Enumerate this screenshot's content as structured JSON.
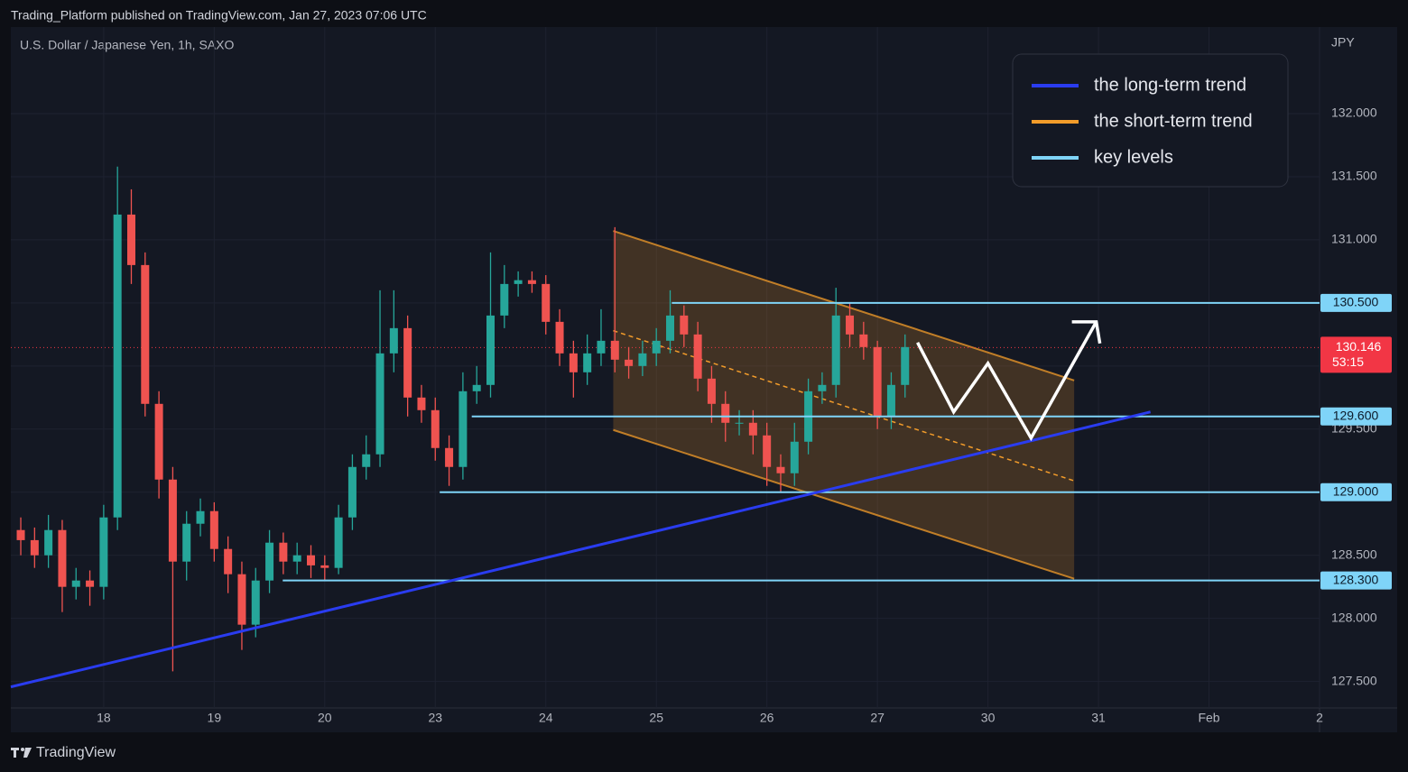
{
  "chart_data": {
    "type": "candlestick",
    "header": "Trading_Platform published on TradingView.com, Jan 27, 2023 07:06 UTC",
    "title": "U.S. Dollar / Japanese Yen, 1h, SAXO",
    "currency": "JPY",
    "brand": "TradingView",
    "grid": true,
    "color_up": "#26a69a",
    "color_down": "#ef5350",
    "x": [
      -0.75,
      -0.625,
      -0.5,
      -0.375,
      -0.25,
      -0.125,
      0,
      0.125,
      0.25,
      0.375,
      0.5,
      0.625,
      0.75,
      0.875,
      1,
      1.125,
      1.25,
      1.375,
      1.5,
      1.625,
      1.75,
      1.875,
      2,
      2.125,
      2.25,
      2.375,
      2.5,
      2.625,
      2.75,
      2.875,
      3,
      3.125,
      3.25,
      3.375,
      3.5,
      3.625,
      3.75,
      3.875,
      4,
      4.125,
      4.25,
      4.375,
      4.5,
      4.625,
      4.75,
      4.875,
      5,
      5.125,
      5.25,
      5.375,
      5.5,
      5.625,
      5.75,
      5.875,
      6,
      6.125,
      6.25,
      6.375,
      6.5,
      6.625,
      6.75,
      6.875,
      7,
      7.125,
      7.25
    ],
    "open": [
      128.7,
      128.62,
      128.5,
      128.7,
      128.25,
      128.3,
      128.25,
      128.8,
      131.2,
      130.8,
      129.7,
      129.1,
      128.45,
      128.75,
      128.85,
      128.55,
      128.35,
      127.95,
      128.3,
      128.6,
      128.45,
      128.5,
      128.42,
      128.4,
      128.8,
      129.2,
      129.3,
      130.1,
      130.3,
      129.75,
      129.65,
      129.35,
      129.2,
      129.8,
      129.85,
      130.4,
      130.65,
      130.68,
      130.65,
      130.35,
      130.1,
      129.95,
      130.1,
      130.2,
      130.05,
      130.0,
      130.1,
      130.2,
      130.4,
      130.25,
      129.9,
      129.7,
      129.55,
      129.55,
      129.45,
      129.2,
      129.15,
      129.4,
      129.8,
      129.85,
      130.4,
      130.25,
      130.15,
      129.6,
      129.85
    ],
    "high": [
      128.8,
      128.72,
      128.82,
      128.78,
      128.4,
      128.38,
      128.9,
      131.58,
      131.4,
      130.9,
      129.8,
      129.2,
      128.85,
      128.95,
      128.92,
      128.65,
      128.45,
      128.4,
      128.7,
      128.68,
      128.6,
      128.58,
      128.5,
      128.9,
      129.3,
      129.45,
      130.6,
      130.6,
      130.4,
      129.85,
      129.75,
      129.45,
      129.95,
      130.0,
      130.9,
      130.8,
      130.75,
      130.75,
      130.72,
      130.45,
      130.2,
      130.25,
      130.45,
      131.1,
      130.15,
      130.2,
      130.3,
      130.6,
      130.48,
      130.35,
      130.0,
      129.8,
      129.65,
      129.65,
      129.55,
      129.3,
      129.55,
      129.9,
      129.95,
      130.62,
      130.5,
      130.35,
      130.2,
      129.95,
      130.25
    ],
    "low": [
      128.5,
      128.4,
      128.4,
      128.05,
      128.15,
      128.1,
      128.15,
      128.7,
      130.65,
      129.6,
      128.95,
      127.58,
      128.3,
      128.65,
      128.45,
      128.2,
      127.75,
      127.85,
      128.2,
      128.35,
      128.35,
      128.32,
      128.3,
      128.35,
      128.7,
      129.1,
      129.2,
      129.95,
      129.6,
      129.55,
      129.25,
      129.05,
      129.1,
      129.7,
      129.75,
      130.3,
      130.55,
      130.58,
      130.25,
      130.0,
      129.75,
      129.85,
      130.0,
      129.95,
      129.9,
      129.92,
      130.0,
      130.1,
      130.15,
      129.8,
      129.55,
      129.4,
      129.45,
      129.3,
      129.05,
      129.0,
      129.05,
      129.3,
      129.7,
      129.75,
      130.15,
      130.05,
      129.5,
      129.5,
      129.75
    ],
    "close": [
      128.62,
      128.5,
      128.7,
      128.25,
      128.3,
      128.25,
      128.8,
      131.2,
      130.8,
      129.7,
      129.1,
      128.45,
      128.75,
      128.85,
      128.55,
      128.35,
      127.95,
      128.3,
      128.6,
      128.45,
      128.5,
      128.42,
      128.4,
      128.8,
      129.2,
      129.3,
      130.1,
      130.3,
      129.75,
      129.65,
      129.35,
      129.2,
      129.8,
      129.85,
      130.4,
      130.65,
      130.68,
      130.65,
      130.35,
      130.1,
      129.95,
      130.1,
      130.2,
      130.05,
      130.0,
      130.1,
      130.2,
      130.4,
      130.25,
      129.9,
      129.7,
      129.55,
      129.55,
      129.45,
      129.2,
      129.15,
      129.4,
      129.8,
      129.85,
      130.4,
      130.25,
      130.15,
      129.6,
      129.85,
      130.15
    ],
    "xlim": [
      -0.84,
      11
    ],
    "xticks": [
      {
        "value": 0,
        "label": "18"
      },
      {
        "value": 1,
        "label": "19"
      },
      {
        "value": 2,
        "label": "20"
      },
      {
        "value": 3,
        "label": "23"
      },
      {
        "value": 4,
        "label": "24"
      },
      {
        "value": 5,
        "label": "25"
      },
      {
        "value": 6,
        "label": "26"
      },
      {
        "value": 7,
        "label": "27"
      },
      {
        "value": 8,
        "label": "30"
      },
      {
        "value": 9,
        "label": "31"
      },
      {
        "value": 10,
        "label": "Feb"
      },
      {
        "value": 11,
        "label": "2"
      }
    ],
    "ylim": [
      127.29,
      132.686
    ],
    "yticks": [
      {
        "value": 127.5,
        "label": "127.500"
      },
      {
        "value": 128,
        "label": "128.000"
      },
      {
        "value": 128.5,
        "label": "128.500"
      },
      {
        "value": 129,
        "label": "129.000"
      },
      {
        "value": 129.5,
        "label": "129.500"
      },
      {
        "value": 130,
        "label": "130.000"
      },
      {
        "value": 130.5,
        "label": "130.500"
      },
      {
        "value": 131,
        "label": "131.000"
      },
      {
        "value": 131.5,
        "label": "131.500"
      },
      {
        "value": 132,
        "label": "132.000"
      }
    ],
    "long_term": {
      "name": "the long-term trend",
      "color": "#2a3cf0",
      "x": [
        -0.84,
        9.47
      ],
      "y": [
        127.457,
        129.636
      ]
    },
    "short_term": {
      "name": "the short-term trend",
      "color": "#f39c2a",
      "upper": {
        "x": [
          4.61,
          8.78
        ],
        "y": [
          131.07,
          129.886
        ]
      },
      "mid": {
        "x": [
          4.61,
          8.78
        ],
        "y": [
          130.28,
          129.09
        ]
      },
      "lower": {
        "x": [
          4.61,
          8.78
        ],
        "y": [
          129.493,
          128.314
        ]
      }
    },
    "key_levels": {
      "name": "key levels",
      "color": "#7fd4f8",
      "levels": [
        {
          "value": 130.5,
          "label": "130.500",
          "from": 5.14
        },
        {
          "value": 129.6,
          "label": "129.600",
          "from": 3.33
        },
        {
          "value": 129,
          "label": "129.000",
          "from": 3.04
        },
        {
          "value": 128.3,
          "label": "128.300",
          "from": 1.62
        }
      ]
    },
    "projection": {
      "color": "#ffffff",
      "x": [
        7.363,
        7.69,
        8.0,
        8.39,
        8.98
      ],
      "y": [
        130.186,
        129.636,
        130.021,
        129.429,
        130.35
      ]
    },
    "current_price": {
      "value": 130.146,
      "label": "130.146",
      "countdown": "53:15",
      "color": "#f23645"
    }
  }
}
